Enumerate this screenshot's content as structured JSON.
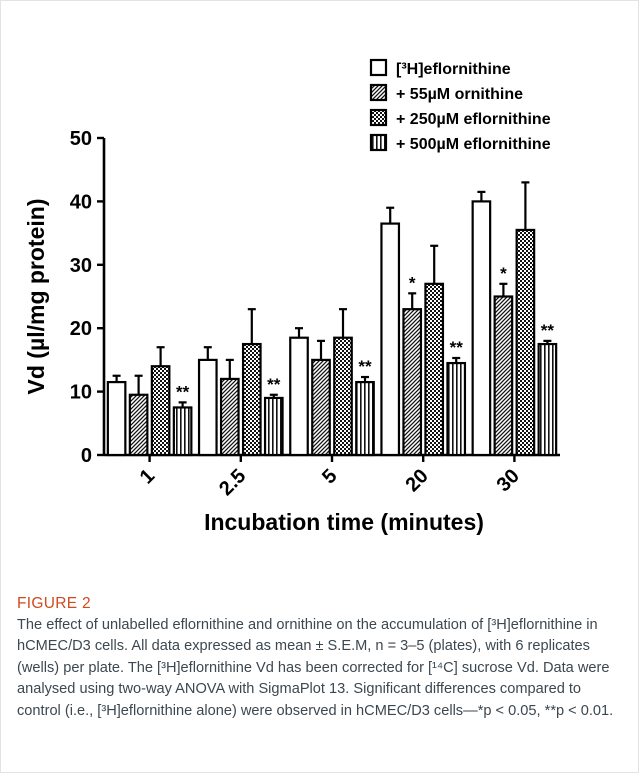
{
  "chart_data": {
    "type": "bar",
    "xlabel": "Incubation time (minutes)",
    "ylabel": "Vd (µl/mg protein)",
    "ylim": [
      0,
      50
    ],
    "yticks": [
      "0",
      "10",
      "20",
      "30",
      "40",
      "50"
    ],
    "grid": false,
    "legend_position": "top-right",
    "categories": [
      "1",
      "2.5",
      "5",
      "20",
      "30"
    ],
    "series": [
      {
        "name": "[³H]eflornithine",
        "pattern": "white",
        "values": [
          11.5,
          15.0,
          18.5,
          36.5,
          40.0
        ],
        "errors": [
          1.0,
          2.0,
          1.5,
          2.5,
          1.5
        ],
        "significance": [
          "",
          "",
          "",
          "",
          ""
        ]
      },
      {
        "name": "+ 55µM ornithine",
        "pattern": "diagonal-hatch",
        "values": [
          9.5,
          12.0,
          15.0,
          23.0,
          25.0
        ],
        "errors": [
          3.0,
          3.0,
          3.0,
          2.5,
          2.0
        ],
        "significance": [
          "",
          "",
          "",
          "*",
          "*"
        ]
      },
      {
        "name": "+ 250µM eflornithine",
        "pattern": "checker",
        "values": [
          14.0,
          17.5,
          18.5,
          27.0,
          35.5
        ],
        "errors": [
          3.0,
          5.5,
          4.5,
          6.0,
          7.5
        ],
        "significance": [
          "",
          "",
          "",
          "",
          ""
        ]
      },
      {
        "name": "+ 500µM eflornithine",
        "pattern": "vertical-lines",
        "values": [
          7.5,
          9.0,
          11.5,
          14.5,
          17.5
        ],
        "errors": [
          0.8,
          0.5,
          0.8,
          0.8,
          0.5
        ],
        "significance": [
          "**",
          "**",
          "**",
          "**",
          "**"
        ]
      }
    ]
  },
  "caption": {
    "figure_label": "FIGURE 2",
    "text": "The effect of unlabelled eflornithine and ornithine on the accumulation of [³H]eflornithine in hCMEC/D3 cells. All data expressed as mean ± S.E.M, n = 3–5 (plates), with 6 replicates (wells) per plate. The [³H]eflornithine Vd has been corrected for [¹⁴C] sucrose Vd. Data were analysed using two-way ANOVA with SigmaPlot 13. Significant differences compared to control (i.e., [³H]eflornithine alone) were observed in hCMEC/D3 cells—*p < 0.05, **p < 0.01."
  }
}
